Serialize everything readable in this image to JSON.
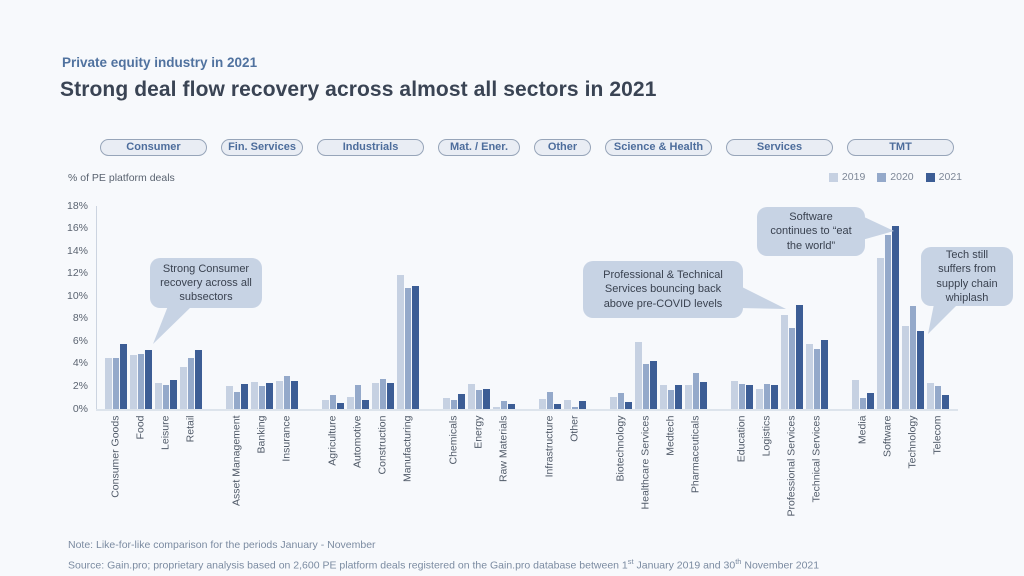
{
  "page": {
    "eyebrow": "Private equity industry in 2021",
    "title": "Strong deal flow recovery across almost all sectors in 2021",
    "note": "Note: Like-for-like comparison for the periods January - November",
    "source_parts": {
      "p1": "Source: Gain.pro; proprietary analysis based on 2,600 PE platform deals registered on the Gain.pro database between 1",
      "sup1": "st",
      "p2": " January 2019 and 30",
      "sup2": "th",
      "p3": " November 2021"
    }
  },
  "chart_data": {
    "type": "bar",
    "title": "Strong deal flow recovery across almost all sectors in 2021",
    "ylabel": "% of PE platform deals",
    "ylim": [
      0,
      18
    ],
    "ytick_step": 2,
    "ytick_suffix": "%",
    "grid": false,
    "legend_position": "top-right",
    "series": [
      {
        "name": "2019",
        "color": "#c6d1e2"
      },
      {
        "name": "2020",
        "color": "#94a9ca"
      },
      {
        "name": "2021",
        "color": "#3c5d95"
      }
    ],
    "groups": [
      {
        "label": "Consumer",
        "categories": [
          "Consumer Goods",
          "Food",
          "Leisure",
          "Retail"
        ],
        "values": {
          "2019": [
            4.5,
            4.8,
            2.3,
            3.7
          ],
          "2020": [
            4.5,
            4.9,
            2.1,
            4.5
          ],
          "2021": [
            5.8,
            5.2,
            2.6,
            5.2
          ]
        }
      },
      {
        "label": "Fin. Services",
        "categories": [
          "Asset Management",
          "Banking",
          "Insurance"
        ],
        "values": {
          "2019": [
            2.0,
            2.4,
            2.5
          ],
          "2020": [
            1.5,
            2.0,
            2.9
          ],
          "2021": [
            2.2,
            2.3,
            2.5
          ]
        }
      },
      {
        "label": "Industrials",
        "categories": [
          "Agriculture",
          "Automotive",
          "Construction",
          "Manufacturing"
        ],
        "values": {
          "2019": [
            0.8,
            1.1,
            2.3,
            11.9
          ],
          "2020": [
            1.2,
            2.1,
            2.7,
            10.7
          ],
          "2021": [
            0.5,
            0.8,
            2.3,
            10.9
          ]
        }
      },
      {
        "label": "Mat. / Ener.",
        "categories": [
          "Chemicals",
          "Energy",
          "Raw Materials"
        ],
        "values": {
          "2019": [
            1.0,
            2.2,
            0.2
          ],
          "2020": [
            0.8,
            1.7,
            0.7
          ],
          "2021": [
            1.3,
            1.8,
            0.4
          ]
        }
      },
      {
        "label": "Other",
        "categories": [
          "Infrastructure",
          "Other"
        ],
        "values": {
          "2019": [
            0.9,
            0.8
          ],
          "2020": [
            1.5,
            0.2
          ],
          "2021": [
            0.4,
            0.7
          ]
        }
      },
      {
        "label": "Science & Health",
        "categories": [
          "Biotechnology",
          "Healthcare Services",
          "Medtech",
          "Pharmaceuticals"
        ],
        "values": {
          "2019": [
            1.1,
            5.9,
            2.1,
            2.1
          ],
          "2020": [
            1.4,
            4.0,
            1.7,
            3.2
          ],
          "2021": [
            0.6,
            4.3,
            2.1,
            2.4
          ]
        }
      },
      {
        "label": "Services",
        "categories": [
          "Education",
          "Logistics",
          "Professional Services",
          "Technical Services"
        ],
        "values": {
          "2019": [
            2.5,
            1.8,
            8.3,
            5.8
          ],
          "2020": [
            2.2,
            2.2,
            7.2,
            5.3
          ],
          "2021": [
            2.1,
            2.1,
            9.2,
            6.1
          ]
        }
      },
      {
        "label": "TMT",
        "categories": [
          "Media",
          "Software",
          "Technology",
          "Telecom"
        ],
        "values": {
          "2019": [
            2.6,
            13.4,
            7.4,
            2.3
          ],
          "2020": [
            1.0,
            15.4,
            9.1,
            2.0
          ],
          "2021": [
            1.4,
            16.2,
            6.9,
            1.2
          ]
        }
      }
    ],
    "annotations": [
      {
        "text": "Strong Consumer recovery across all subsectors"
      },
      {
        "text": "Professional & Technical Services bouncing back above pre-COVID levels"
      },
      {
        "text": "Software continues to “eat the world”"
      },
      {
        "text": "Tech still suffers from supply chain whiplash"
      }
    ]
  }
}
